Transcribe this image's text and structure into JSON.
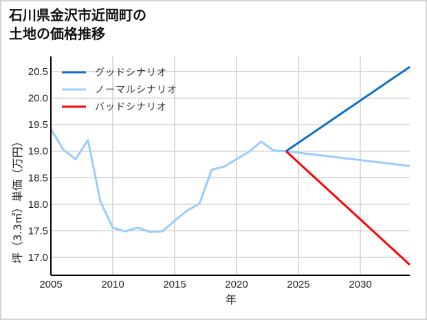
{
  "title": {
    "line1": "石川県金沢市近岡町の",
    "line2": "土地の価格推移"
  },
  "chart_data": {
    "type": "line",
    "title": "石川県金沢市近岡町の土地の価格推移",
    "xlabel": "年",
    "ylabel": "坪（3.3㎡）単価（万円）",
    "xlim": [
      2005,
      2034
    ],
    "ylim": [
      16.85,
      20.7
    ],
    "x_ticks": [
      2005,
      2010,
      2015,
      2020,
      2025,
      2030
    ],
    "x_tick_labels": [
      "2005",
      "2010",
      "2015",
      "2020",
      "2025",
      "2030"
    ],
    "y_ticks": [
      17.0,
      17.5,
      18.0,
      18.5,
      19.0,
      19.5,
      20.0,
      20.5
    ],
    "y_tick_labels": [
      "17.0",
      "17.5",
      "18.0",
      "18.5",
      "19.0",
      "19.5",
      "20.0",
      "20.5"
    ],
    "grid": true,
    "legend_position": "upper left",
    "series": [
      {
        "name": "グッドシナリオ",
        "color": "#0f6fc6",
        "x": [
          2024,
          2034
        ],
        "values": [
          19.0,
          20.59
        ]
      },
      {
        "name": "ノーマルシナリオ",
        "color": "#99ccff",
        "x": [
          2005,
          2006,
          2007,
          2008,
          2009,
          2010,
          2011,
          2012,
          2013,
          2014,
          2015,
          2016,
          2017,
          2018,
          2019,
          2020,
          2021,
          2022,
          2023,
          2024,
          2034
        ],
        "values": [
          19.42,
          19.03,
          18.85,
          19.21,
          18.05,
          17.56,
          17.49,
          17.56,
          17.48,
          17.49,
          17.69,
          17.88,
          18.01,
          18.65,
          18.71,
          18.85,
          18.99,
          19.18,
          19.01,
          19.0,
          18.72
        ]
      },
      {
        "name": "バッドシナリオ",
        "color": "#ff0000",
        "x": [
          2024,
          2034
        ],
        "values": [
          19.0,
          16.86
        ]
      }
    ]
  }
}
